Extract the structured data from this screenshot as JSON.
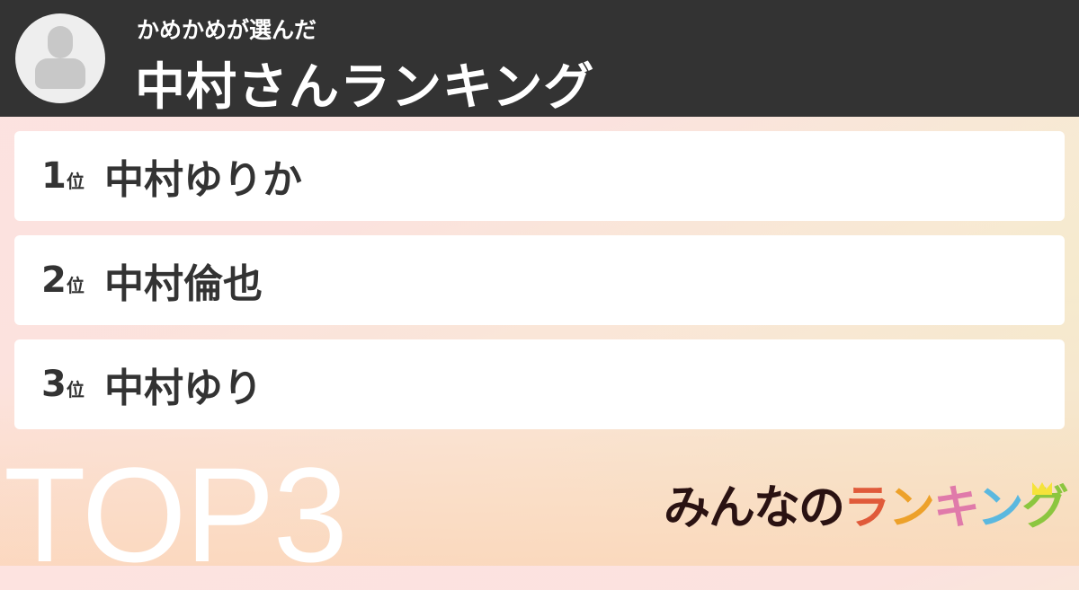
{
  "header": {
    "subtitle": "かめかめが選んだ",
    "title": "中村さんランキング",
    "avatar_icon": "user-avatar-icon"
  },
  "ranking": [
    {
      "rank": "1",
      "unit": "位",
      "name": "中村ゆりか"
    },
    {
      "rank": "2",
      "unit": "位",
      "name": "中村倫也"
    },
    {
      "rank": "3",
      "unit": "位",
      "name": "中村ゆり"
    }
  ],
  "badge": "TOP3",
  "logo": {
    "part1": "みんなの",
    "chars": [
      "ラ",
      "ン",
      "キ",
      "ン",
      "グ"
    ],
    "colors": [
      "#e05a3a",
      "#eda12a",
      "#e07aaa",
      "#5bb8df",
      "#8cc63f"
    ],
    "text_color": "#2a1212",
    "crown_color": "#f5e33a"
  }
}
